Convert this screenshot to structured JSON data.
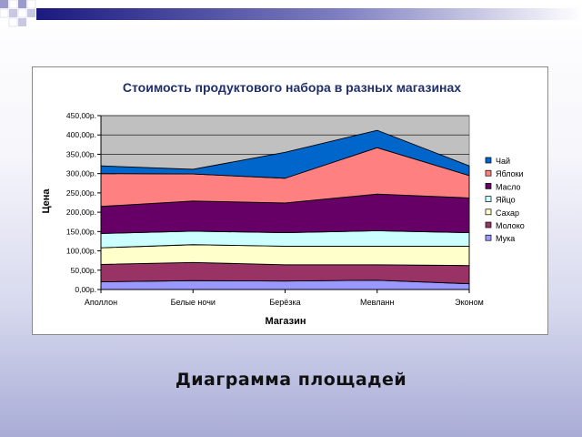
{
  "slide": {
    "caption": "Диаграмма площадей"
  },
  "chart_data": {
    "type": "area",
    "stacked": true,
    "title": "Стоимость продуктового набора в разных магазинах",
    "xlabel": "Магазин",
    "ylabel": "Цена",
    "categories": [
      "Аполлон",
      "Белые ночи",
      "Берёзка",
      "Мевланн",
      "Эконом"
    ],
    "ylim": [
      0,
      450
    ],
    "y_ticks": [
      0,
      50,
      100,
      150,
      200,
      250,
      300,
      350,
      400,
      450
    ],
    "y_tick_labels": [
      "0,00р.",
      "50,00р.",
      "100,00р.",
      "150,00р.",
      "200,00р.",
      "250,00р.",
      "300,00р.",
      "350,00р.",
      "400,00р.",
      "450,00р."
    ],
    "grid": true,
    "legend_position": "right",
    "plot_background": "#c0c0c0",
    "series": [
      {
        "name": "Мука",
        "color": "#9999ff",
        "values": [
          20,
          23,
          22,
          24,
          15
        ]
      },
      {
        "name": "Молоко",
        "color": "#993366",
        "values": [
          45,
          47,
          42,
          40,
          47
        ]
      },
      {
        "name": "Сахар",
        "color": "#ffffcc",
        "values": [
          43,
          46,
          48,
          48,
          50
        ]
      },
      {
        "name": "Яйцо",
        "color": "#ccffff",
        "values": [
          37,
          35,
          35,
          40,
          35
        ]
      },
      {
        "name": "Масло",
        "color": "#660066",
        "values": [
          70,
          78,
          77,
          95,
          90
        ]
      },
      {
        "name": "Яблоки",
        "color": "#ff8080",
        "values": [
          85,
          70,
          64,
          120,
          58
        ]
      },
      {
        "name": "Чай",
        "color": "#0066cc",
        "values": [
          20,
          12,
          67,
          45,
          25
        ]
      }
    ]
  }
}
